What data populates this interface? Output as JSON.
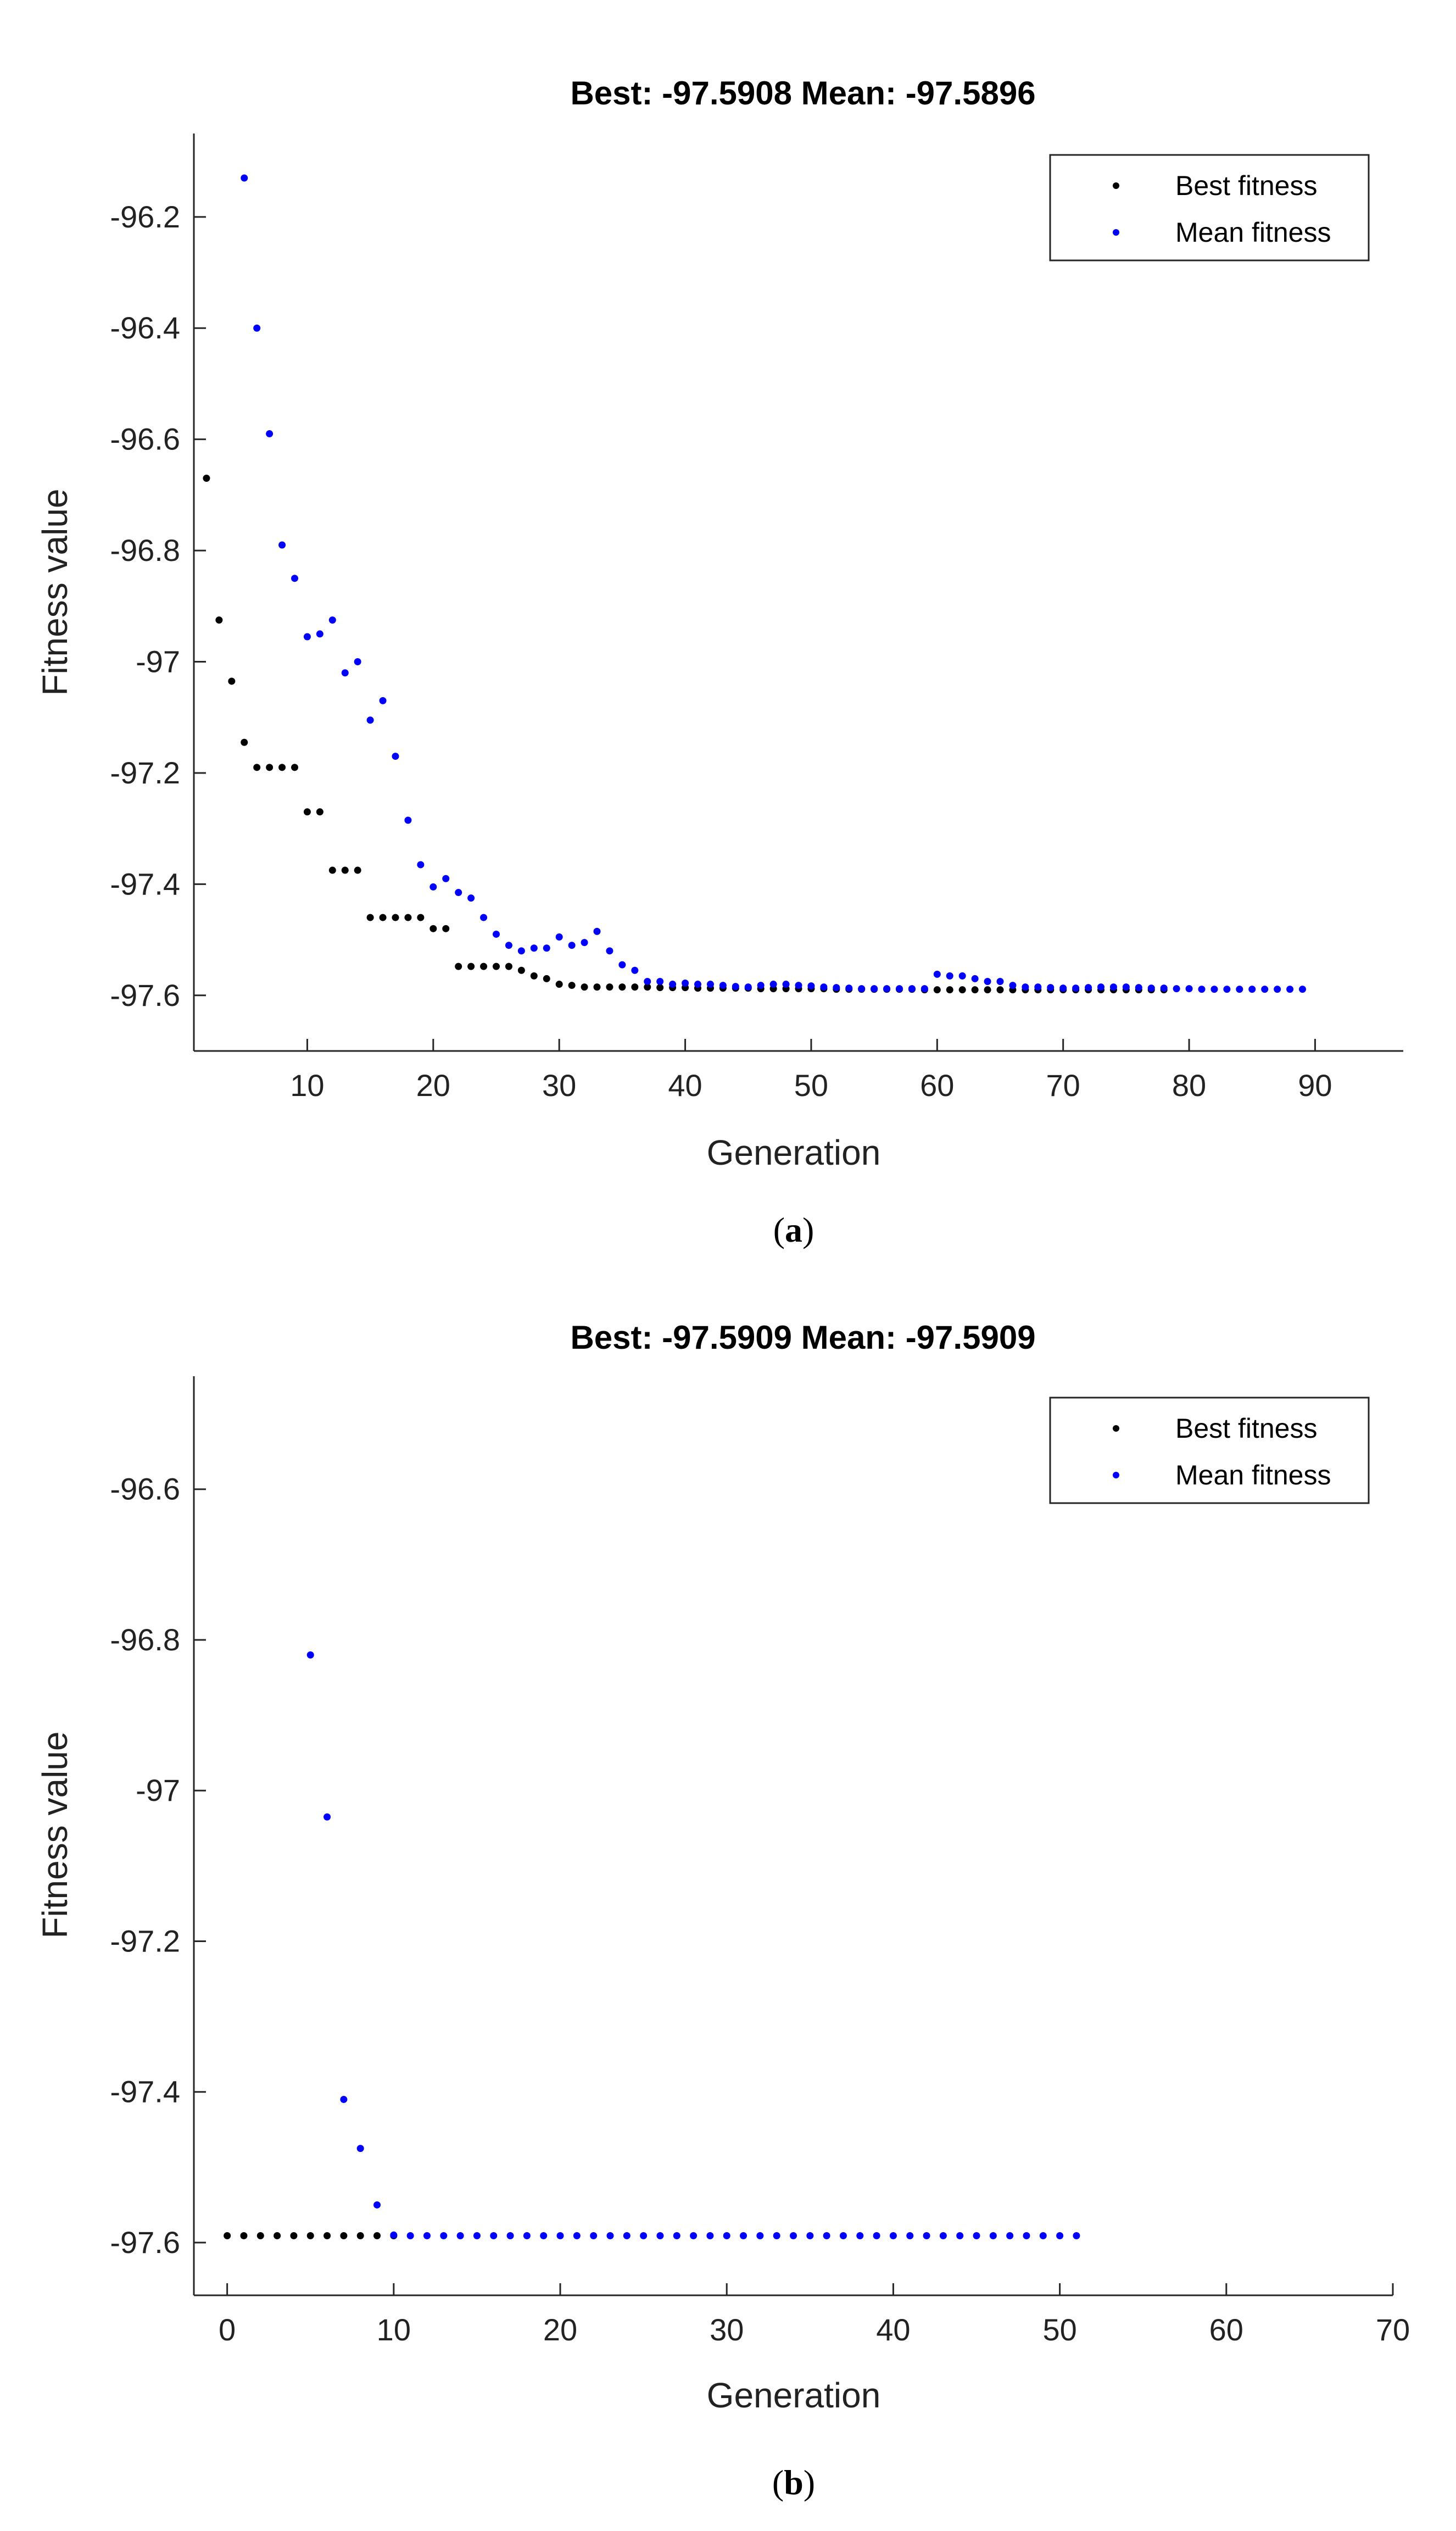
{
  "chart_data": [
    {
      "type": "scatter",
      "panel_label": "a",
      "title": "Best: -97.5908 Mean: -97.5896",
      "xlabel": "Generation",
      "ylabel": "Fitness value",
      "xlim": [
        1,
        97
      ],
      "ylim": [
        -97.7,
        -96.05
      ],
      "xticks": [
        "10",
        "20",
        "30",
        "40",
        "50",
        "60",
        "70",
        "80",
        "90"
      ],
      "yticks": [
        "-96.2",
        "-96.4",
        "-96.6",
        "-96.8",
        "-97",
        "-97.2",
        "-97.4",
        "-97.6"
      ],
      "legend_position": "top-right",
      "series": [
        {
          "name": "Best fitness",
          "color": "#000000",
          "x": [
            2,
            3,
            4,
            5,
            6,
            7,
            8,
            9,
            10,
            11,
            12,
            13,
            14,
            15,
            16,
            17,
            18,
            19,
            20,
            21,
            22,
            23,
            24,
            25,
            26,
            27,
            28,
            29,
            30,
            31,
            32,
            33,
            34,
            35,
            36,
            37,
            38,
            39,
            40,
            41,
            42,
            43,
            44,
            45,
            46,
            47,
            48,
            49,
            50,
            51,
            52,
            53,
            54,
            55,
            56,
            57,
            58,
            59,
            60,
            61,
            62,
            63,
            64,
            65,
            66,
            67,
            68,
            69,
            70,
            71,
            72,
            73,
            74,
            75,
            76,
            77,
            78
          ],
          "values": [
            -96.67,
            -96.925,
            -97.035,
            -97.145,
            -97.19,
            -97.19,
            -97.19,
            -97.19,
            -97.27,
            -97.27,
            -97.375,
            -97.375,
            -97.375,
            -97.46,
            -97.46,
            -97.46,
            -97.46,
            -97.46,
            -97.48,
            -97.48,
            -97.548,
            -97.548,
            -97.548,
            -97.548,
            -97.548,
            -97.555,
            -97.565,
            -97.57,
            -97.58,
            -97.582,
            -97.585,
            -97.585,
            -97.585,
            -97.585,
            -97.585,
            -97.585,
            -97.586,
            -97.586,
            -97.586,
            -97.587,
            -97.587,
            -97.587,
            -97.587,
            -97.587,
            -97.588,
            -97.588,
            -97.588,
            -97.588,
            -97.588,
            -97.588,
            -97.589,
            -97.589,
            -97.589,
            -97.589,
            -97.589,
            -97.589,
            -97.589,
            -97.59,
            -97.59,
            -97.59,
            -97.59,
            -97.59,
            -97.59,
            -97.59,
            -97.59,
            -97.59,
            -97.59,
            -97.59,
            -97.59,
            -97.59,
            -97.59,
            -97.59,
            -97.59,
            -97.59,
            -97.59,
            -97.59,
            -97.59
          ]
        },
        {
          "name": "Mean fitness",
          "color": "#0000ff",
          "x": [
            5,
            6,
            7,
            8,
            9,
            10,
            11,
            12,
            13,
            14,
            15,
            16,
            17,
            18,
            19,
            20,
            21,
            22,
            23,
            24,
            25,
            26,
            27,
            28,
            29,
            30,
            31,
            32,
            33,
            34,
            35,
            36,
            37,
            38,
            39,
            40,
            41,
            42,
            43,
            44,
            45,
            46,
            47,
            48,
            49,
            50,
            51,
            52,
            53,
            54,
            55,
            56,
            57,
            58,
            59,
            60,
            61,
            62,
            63,
            64,
            65,
            66,
            67,
            68,
            69,
            70,
            71,
            72,
            73,
            74,
            75,
            76,
            77,
            78,
            79,
            80,
            81,
            82,
            83,
            84,
            85,
            86,
            87,
            88,
            89
          ],
          "values": [
            -96.13,
            -96.4,
            -96.59,
            -96.79,
            -96.85,
            -96.955,
            -96.95,
            -96.925,
            -97.02,
            -97.0,
            -97.105,
            -97.07,
            -97.17,
            -97.285,
            -97.365,
            -97.405,
            -97.39,
            -97.415,
            -97.425,
            -97.46,
            -97.49,
            -97.51,
            -97.52,
            -97.515,
            -97.515,
            -97.495,
            -97.51,
            -97.505,
            -97.485,
            -97.52,
            -97.545,
            -97.555,
            -97.575,
            -97.575,
            -97.58,
            -97.578,
            -97.58,
            -97.58,
            -97.582,
            -97.584,
            -97.585,
            -97.582,
            -97.58,
            -97.58,
            -97.582,
            -97.583,
            -97.585,
            -97.586,
            -97.587,
            -97.588,
            -97.588,
            -97.588,
            -97.588,
            -97.588,
            -97.588,
            -97.562,
            -97.565,
            -97.565,
            -97.57,
            -97.575,
            -97.575,
            -97.582,
            -97.585,
            -97.585,
            -97.586,
            -97.587,
            -97.587,
            -97.586,
            -97.585,
            -97.585,
            -97.585,
            -97.586,
            -97.587,
            -97.587,
            -97.588,
            -97.588,
            -97.589,
            -97.589,
            -97.589,
            -97.589,
            -97.589,
            -97.589,
            -97.589,
            -97.589,
            -97.589
          ]
        }
      ]
    },
    {
      "type": "scatter",
      "panel_label": "b",
      "title": "Best: -97.5909 Mean: -97.5909",
      "xlabel": "Generation",
      "ylabel": "Fitness value",
      "xlim": [
        -2,
        70
      ],
      "ylim": [
        -97.67,
        -96.45
      ],
      "xticks": [
        "0",
        "10",
        "20",
        "30",
        "40",
        "50",
        "60",
        "70"
      ],
      "yticks": [
        "-96.6",
        "-96.8",
        "-97",
        "-97.2",
        "-97.4",
        "-97.6"
      ],
      "legend_position": "top-right",
      "series": [
        {
          "name": "Best fitness",
          "color": "#000000",
          "x": [
            0,
            1,
            2,
            3,
            4,
            5,
            6,
            7,
            8,
            9,
            10
          ],
          "values": [
            -97.5909,
            -97.5909,
            -97.5909,
            -97.5909,
            -97.5909,
            -97.5909,
            -97.5909,
            -97.5909,
            -97.5909,
            -97.5909,
            -97.5909
          ]
        },
        {
          "name": "Mean fitness",
          "color": "#0000ff",
          "x": [
            5,
            6,
            7,
            8,
            9,
            10,
            11,
            12,
            13,
            14,
            15,
            16,
            17,
            18,
            19,
            20,
            21,
            22,
            23,
            24,
            25,
            26,
            27,
            28,
            29,
            30,
            31,
            32,
            33,
            34,
            35,
            36,
            37,
            38,
            39,
            40,
            41,
            42,
            43,
            44,
            45,
            46,
            47,
            48,
            49,
            50,
            51
          ],
          "values": [
            -96.82,
            -97.035,
            -97.41,
            -97.475,
            -97.55,
            -97.59,
            -97.5909,
            -97.5909,
            -97.5909,
            -97.5909,
            -97.5909,
            -97.5909,
            -97.5909,
            -97.5909,
            -97.5909,
            -97.5909,
            -97.5909,
            -97.5909,
            -97.5909,
            -97.5909,
            -97.5909,
            -97.5909,
            -97.5909,
            -97.5909,
            -97.5909,
            -97.5909,
            -97.5909,
            -97.5909,
            -97.5909,
            -97.5909,
            -97.5909,
            -97.5909,
            -97.5909,
            -97.5909,
            -97.5909,
            -97.5909,
            -97.5909,
            -97.5909,
            -97.5909,
            -97.5909,
            -97.5909,
            -97.5909,
            -97.5909,
            -97.5909,
            -97.5909,
            -97.5909,
            -97.5909
          ]
        }
      ]
    }
  ]
}
